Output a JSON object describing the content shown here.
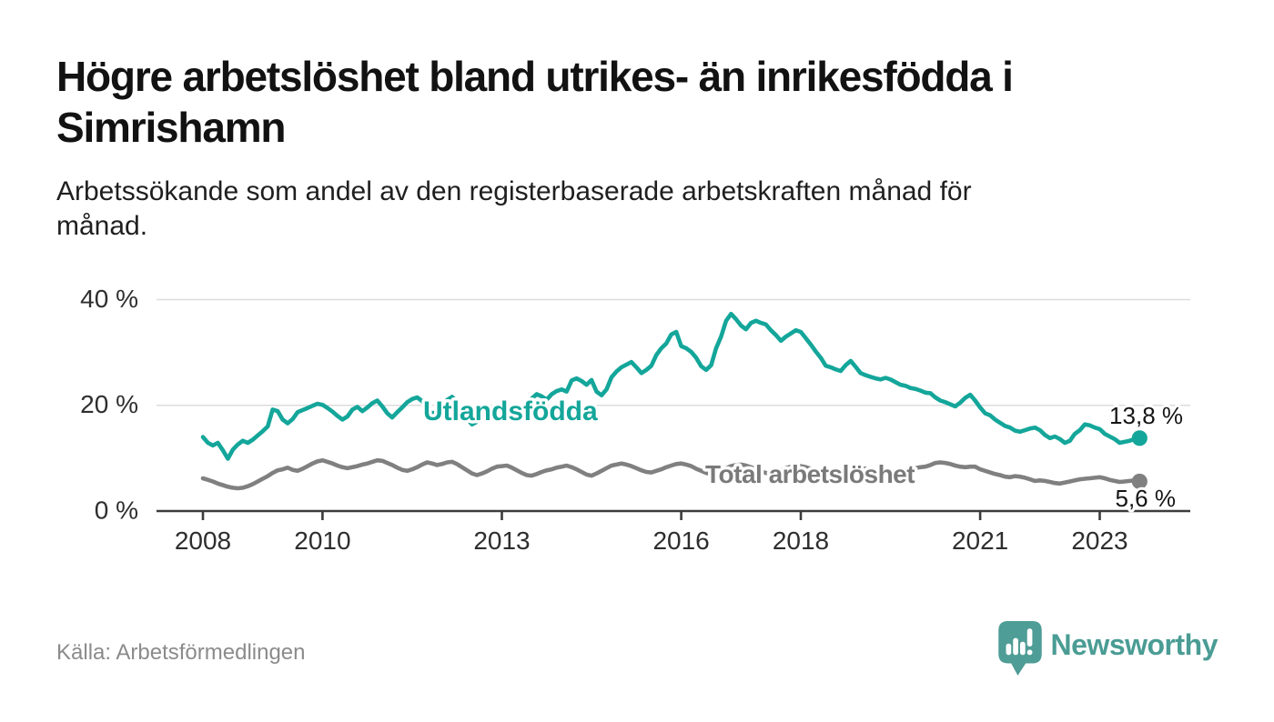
{
  "header": {
    "title_line1": "Högre arbetslöshet bland utrikes- än inrikesfödda i",
    "title_line2": "Simrishamn",
    "subtitle_line1": "Arbetssökande som andel av den registerbaserade arbetskraften månad för",
    "subtitle_line2": "månad."
  },
  "footer": {
    "source": "Källa: Arbetsförmedlingen",
    "brand": "Newsworthy"
  },
  "colors": {
    "series_teal": "#14a69a",
    "series_gray": "#808080",
    "grid": "#dcdcdc",
    "axis": "#3b3b3b",
    "axis_text": "#2e2e2e",
    "end_label_text": "#151515",
    "brand_teal": "#4e9d96"
  },
  "chart_data": {
    "type": "line",
    "title": "Högre arbetslöshet bland utrikes- än inrikesfödda i Simrishamn",
    "subtitle": "Arbetssökande som andel av den registerbaserade arbetskraften månad för månad.",
    "unit": "%",
    "x_start": "2008-01",
    "x_end": "2023-09",
    "x_interval": "month",
    "grid": "horizontal",
    "ylim": [
      0,
      44
    ],
    "y_ticks": [
      0,
      20,
      40
    ],
    "y_tick_labels": [
      "0 %",
      "20 %",
      "40 %"
    ],
    "x_ticks": [
      2008,
      2010,
      2013,
      2016,
      2018,
      2021,
      2023
    ],
    "x_tick_labels": [
      "2008",
      "2010",
      "2013",
      "2016",
      "2018",
      "2021",
      "2023"
    ],
    "series": [
      {
        "name": "Total arbetslöshet",
        "color": "#808080",
        "label_color": "#7a7a7a",
        "end_value": 5.6,
        "end_label": "5,6 %",
        "values": [
          6.2,
          5.9,
          5.6,
          5.2,
          4.9,
          4.6,
          4.4,
          4.3,
          4.4,
          4.7,
          5.1,
          5.6,
          6.1,
          6.6,
          7.2,
          7.7,
          7.9,
          8.2,
          7.8,
          7.6,
          8.0,
          8.5,
          9.0,
          9.4,
          9.6,
          9.3,
          9.0,
          8.6,
          8.3,
          8.1,
          8.3,
          8.5,
          8.8,
          9.0,
          9.3,
          9.6,
          9.5,
          9.1,
          8.7,
          8.2,
          7.8,
          7.6,
          7.9,
          8.3,
          8.8,
          9.2,
          9.0,
          8.7,
          8.9,
          9.2,
          9.3,
          8.9,
          8.3,
          7.7,
          7.1,
          6.8,
          7.1,
          7.5,
          8.0,
          8.4,
          8.5,
          8.6,
          8.2,
          7.7,
          7.2,
          6.8,
          6.7,
          7.0,
          7.4,
          7.7,
          7.9,
          8.2,
          8.4,
          8.6,
          8.3,
          7.9,
          7.4,
          6.9,
          6.7,
          7.1,
          7.6,
          8.1,
          8.6,
          8.8,
          9.0,
          8.8,
          8.5,
          8.1,
          7.7,
          7.4,
          7.3,
          7.6,
          7.9,
          8.3,
          8.6,
          8.9,
          9.0,
          8.8,
          8.5,
          8.0,
          7.6,
          7.2,
          7.0,
          7.3,
          7.7,
          8.1,
          8.5,
          8.7,
          8.8,
          8.6,
          8.3,
          7.9,
          7.5,
          7.2,
          7.1,
          7.4,
          7.8,
          8.1,
          8.4,
          8.6,
          8.5,
          8.3,
          8.0,
          7.6,
          7.2,
          6.9,
          6.8,
          7.0,
          7.3,
          7.6,
          7.9,
          8.1,
          8.2,
          8.0,
          7.7,
          7.4,
          7.1,
          6.9,
          7.0,
          7.2,
          7.5,
          7.7,
          7.9,
          8.1,
          8.3,
          8.4,
          8.7,
          9.1,
          9.2,
          9.1,
          8.9,
          8.6,
          8.4,
          8.3,
          8.4,
          8.4,
          7.9,
          7.6,
          7.3,
          7.0,
          6.8,
          6.5,
          6.4,
          6.6,
          6.5,
          6.3,
          6.0,
          5.7,
          5.8,
          5.7,
          5.5,
          5.3,
          5.2,
          5.4,
          5.6,
          5.8,
          6.0,
          6.1,
          6.2,
          6.3,
          6.4,
          6.2,
          5.9,
          5.7,
          5.5,
          5.6,
          5.7,
          5.8,
          5.6
        ]
      },
      {
        "name": "Utlandsfödda",
        "color": "#14a69a",
        "label_color": "#14a69a",
        "end_value": 13.8,
        "end_label": "13,8 %",
        "values": [
          14.0,
          12.9,
          12.4,
          12.9,
          11.5,
          9.9,
          11.6,
          12.6,
          13.3,
          12.9,
          13.5,
          14.3,
          15.1,
          16.0,
          19.2,
          18.9,
          17.3,
          16.6,
          17.4,
          18.7,
          19.1,
          19.5,
          19.9,
          20.3,
          20.1,
          19.5,
          18.8,
          18.0,
          17.3,
          17.9,
          19.2,
          19.7,
          18.9,
          19.6,
          20.4,
          20.9,
          19.8,
          18.5,
          17.7,
          18.7,
          19.6,
          20.6,
          21.2,
          21.5,
          20.8,
          19.4,
          18.5,
          18.7,
          19.6,
          21.0,
          21.6,
          20.6,
          18.9,
          17.5,
          16.4,
          16.9,
          17.6,
          18.3,
          17.9,
          18.3,
          18.1,
          17.7,
          18.2,
          18.9,
          19.6,
          20.5,
          21.3,
          22.1,
          21.7,
          21.1,
          22.1,
          22.7,
          23.0,
          22.6,
          24.7,
          25.1,
          24.6,
          23.9,
          24.8,
          22.6,
          21.9,
          23.0,
          25.3,
          26.4,
          27.2,
          27.7,
          28.2,
          27.2,
          26.1,
          26.7,
          27.5,
          29.5,
          30.8,
          31.7,
          33.4,
          33.9,
          31.2,
          30.8,
          30.1,
          29.0,
          27.4,
          26.7,
          27.6,
          30.8,
          33.0,
          36.0,
          37.3,
          36.3,
          35.1,
          34.4,
          35.6,
          36.0,
          35.6,
          35.3,
          34.2,
          33.3,
          32.2,
          33.0,
          33.6,
          34.2,
          33.9,
          32.7,
          31.5,
          30.2,
          29.0,
          27.5,
          27.2,
          26.8,
          26.5,
          27.6,
          28.4,
          27.3,
          26.1,
          25.7,
          25.4,
          25.1,
          24.9,
          25.2,
          24.9,
          24.4,
          23.9,
          23.7,
          23.3,
          23.1,
          22.8,
          22.4,
          22.3,
          21.5,
          20.9,
          20.6,
          20.2,
          19.8,
          20.5,
          21.4,
          22.0,
          20.9,
          19.6,
          18.5,
          18.1,
          17.3,
          16.7,
          16.1,
          15.8,
          15.2,
          15.0,
          15.3,
          15.6,
          15.8,
          15.3,
          14.4,
          13.8,
          14.1,
          13.6,
          12.9,
          13.3,
          14.6,
          15.3,
          16.4,
          16.2,
          15.8,
          15.5,
          14.6,
          14.1,
          13.6,
          12.9,
          13.1,
          13.3,
          13.6,
          13.8
        ]
      }
    ]
  }
}
